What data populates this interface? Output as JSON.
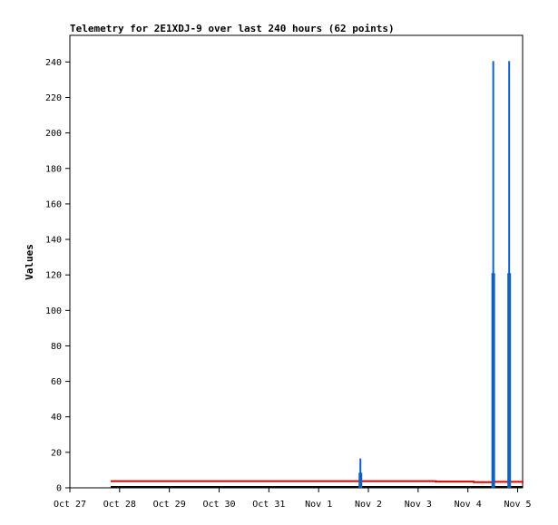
{
  "chart_data": {
    "type": "line",
    "title": "Telemetry for 2E1XDJ-9 over last 240 hours (62 points)",
    "ylabel": "Values",
    "xlabel": "",
    "ylim": [
      0,
      255
    ],
    "xlim_days": [
      0,
      9.1
    ],
    "grid": false,
    "legend": "none",
    "x_ticks": [
      {
        "label": "Oct 27",
        "day": 0
      },
      {
        "label": "Oct 28",
        "day": 1
      },
      {
        "label": "Oct 29",
        "day": 2
      },
      {
        "label": "Oct 30",
        "day": 3
      },
      {
        "label": "Oct 31",
        "day": 4
      },
      {
        "label": "Nov 1",
        "day": 5
      },
      {
        "label": "Nov 2",
        "day": 6
      },
      {
        "label": "Nov 3",
        "day": 7
      },
      {
        "label": "Nov 4",
        "day": 8
      },
      {
        "label": "Nov 5",
        "day": 9
      }
    ],
    "y_ticks": [
      0,
      20,
      40,
      60,
      80,
      100,
      120,
      140,
      160,
      180,
      200,
      220,
      240
    ],
    "series": [
      {
        "color": "#000000",
        "style": "step",
        "x": [
          0.82,
          9.1
        ],
        "y": [
          0.5,
          0.5
        ]
      },
      {
        "color": "#dd0000",
        "style": "step",
        "x": [
          0.82,
          7.35,
          8.12,
          8.5,
          9.1
        ],
        "y": [
          3.8,
          3.5,
          3.2,
          3.4,
          3.7
        ]
      },
      {
        "color": "#1060c0",
        "style": "spikes",
        "spikes": [
          {
            "day": 5.84,
            "outer": 16.5,
            "inner": 8.5
          },
          {
            "day": 8.51,
            "outer": 240.5,
            "inner": 121
          },
          {
            "day": 8.83,
            "outer": 240.5,
            "inner": 121
          }
        ]
      }
    ]
  }
}
